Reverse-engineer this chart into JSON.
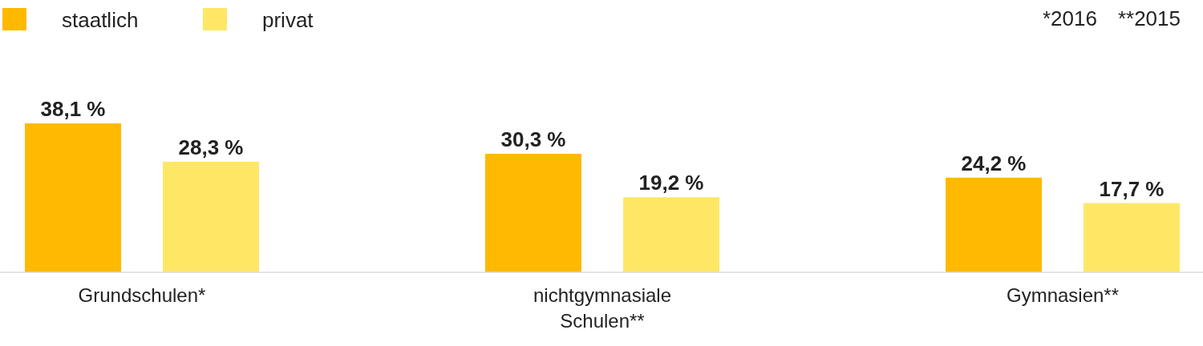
{
  "chart_data": {
    "type": "bar",
    "categories": [
      "Grundschulen*",
      "nichtgymnasiale Schulen**",
      "Gymnasien**"
    ],
    "series": [
      {
        "name": "staatlich",
        "color": "#ffb900",
        "values": [
          38.1,
          30.3,
          24.2
        ],
        "value_labels": [
          "38,1 %",
          "30,3 %",
          "24,2 %"
        ]
      },
      {
        "name": "privat",
        "color": "#ffe766",
        "values": [
          28.3,
          19.2,
          17.7
        ],
        "value_labels": [
          "28,3 %",
          "19,2 %",
          "17,7 %"
        ]
      }
    ],
    "legend": "top left",
    "annotations": [
      "*2016",
      "**2015"
    ]
  }
}
